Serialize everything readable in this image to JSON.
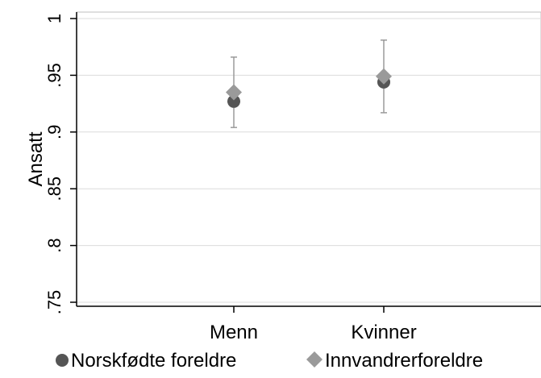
{
  "chart_data": {
    "type": "scatter",
    "xlabel": "",
    "ylabel": "Ansatt",
    "ylim": [
      0.745,
      1.0
    ],
    "yticks": [
      {
        "value": 1.0,
        "label": "1"
      },
      {
        "value": 0.95,
        "label": ".95"
      },
      {
        "value": 0.9,
        "label": ".9"
      },
      {
        "value": 0.85,
        "label": ".85"
      },
      {
        "value": 0.8,
        "label": ".8"
      },
      {
        "value": 0.75,
        "label": ".75"
      }
    ],
    "categories": [
      "Menn",
      "Kvinner"
    ],
    "grid": true,
    "legend_position": "bottom",
    "series": [
      {
        "name": "Norskfødte foreldre",
        "marker": "circle",
        "color": "#555555",
        "values": [
          0.927,
          0.944
        ]
      },
      {
        "name": "Innvandrerforeldre",
        "marker": "diamond",
        "color": "#9a9a9a",
        "values": [
          0.935,
          0.949
        ],
        "ci_low": [
          0.904,
          0.917
        ],
        "ci_high": [
          0.966,
          0.981
        ]
      }
    ],
    "colors": {
      "axis": "#000000",
      "grid": "#dcdcdc",
      "errorbar": "#9a9a9a"
    }
  }
}
